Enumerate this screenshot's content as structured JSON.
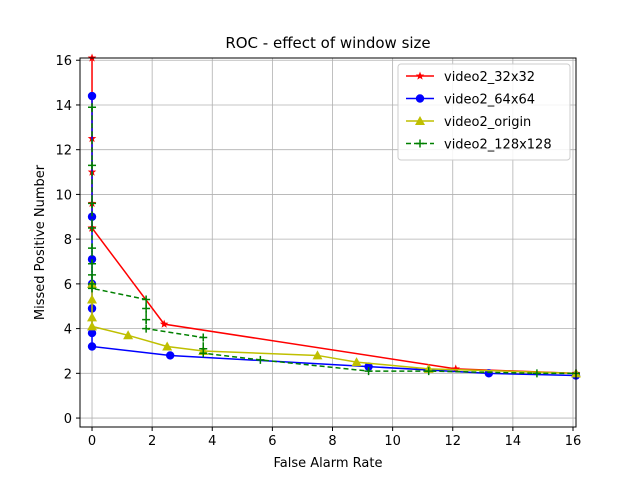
{
  "chart_data": {
    "type": "line",
    "title": "ROC - effect of window size",
    "xlabel": "False Alarm Rate",
    "ylabel": "Missed Positive Number",
    "xlim": [
      -0.4,
      16.1
    ],
    "ylim": [
      -0.4,
      16.1
    ],
    "xticks": [
      0,
      2,
      4,
      6,
      8,
      10,
      12,
      14,
      16
    ],
    "yticks": [
      0,
      2,
      4,
      6,
      8,
      10,
      12,
      14,
      16
    ],
    "grid": true,
    "legend_position": "top-right",
    "series": [
      {
        "name": "video2_32x32",
        "color": "#ff0000",
        "marker": "star",
        "linestyle": "solid",
        "x": [
          0,
          0,
          0,
          0,
          0,
          0,
          0,
          0,
          0,
          0,
          2.4,
          12.1,
          16.1
        ],
        "y": [
          16.1,
          14.4,
          12.5,
          11.0,
          9.6,
          8.5,
          8.5,
          8.5,
          8.5,
          8.5,
          4.2,
          2.2,
          2.0
        ]
      },
      {
        "name": "video2_64x64",
        "color": "#0000ff",
        "marker": "circle",
        "linestyle": "solid",
        "x": [
          0,
          0,
          0,
          0,
          0,
          0,
          0,
          2.6,
          9.2,
          13.2,
          16.1
        ],
        "y": [
          14.4,
          9.0,
          7.1,
          6.0,
          4.9,
          3.8,
          3.2,
          2.8,
          2.3,
          2.0,
          1.9
        ]
      },
      {
        "name": "video2_origin",
        "color": "#bfbf00",
        "marker": "triangle",
        "linestyle": "solid",
        "x": [
          0,
          0,
          0,
          0,
          1.2,
          2.5,
          3.7,
          7.5,
          8.8,
          11.2,
          16.1
        ],
        "y": [
          6.0,
          5.3,
          4.5,
          4.1,
          3.7,
          3.2,
          3.0,
          2.8,
          2.5,
          2.2,
          2.0
        ]
      },
      {
        "name": "video2_128x128",
        "color": "#008000",
        "marker": "plus",
        "linestyle": "dashed",
        "x": [
          0,
          0,
          0,
          0,
          0,
          0,
          0,
          0,
          0,
          1.8,
          1.8,
          1.8,
          1.8,
          3.7,
          3.7,
          3.7,
          5.6,
          9.2,
          11.2,
          14.8,
          16.1
        ],
        "y": [
          13.9,
          11.3,
          9.6,
          8.5,
          7.6,
          6.9,
          6.4,
          6.0,
          5.8,
          5.3,
          4.9,
          4.4,
          4.0,
          3.6,
          3.1,
          2.9,
          2.6,
          2.1,
          2.1,
          2.0,
          2.0
        ]
      }
    ]
  }
}
